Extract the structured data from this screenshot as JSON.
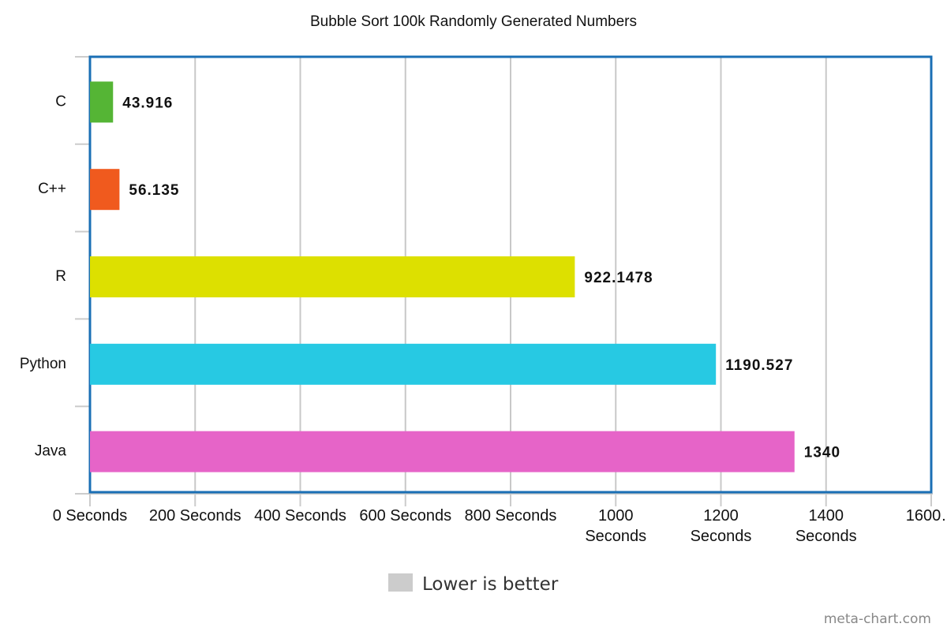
{
  "chart_data": {
    "type": "bar",
    "orientation": "horizontal",
    "title": "Bubble Sort 100k Randomly Generated Numbers",
    "categories": [
      "C",
      "C++",
      "R",
      "Python",
      "Java"
    ],
    "values": [
      43.916,
      56.135,
      922.1478,
      1190.527,
      1340
    ],
    "value_labels": [
      "43.916",
      "56.135",
      "922.1478",
      "1190.527",
      "1340"
    ],
    "colors": [
      "#55b535",
      "#f05a1e",
      "#dde000",
      "#27c9e3",
      "#e664c8"
    ],
    "xlim": [
      0,
      1600
    ],
    "xticks": [
      0,
      200,
      400,
      600,
      800,
      1000,
      1200,
      1400,
      1600
    ],
    "xtick_labels": [
      [
        "0 Seconds"
      ],
      [
        "200 Seconds"
      ],
      [
        "400 Seconds"
      ],
      [
        "600 Seconds"
      ],
      [
        "800 Seconds"
      ],
      [
        "1000",
        "Seconds"
      ],
      [
        "1200",
        "Seconds"
      ],
      [
        "1400",
        "Seconds"
      ],
      [
        "1600…"
      ]
    ],
    "grid": true,
    "legend": {
      "position": "bottom",
      "label": "Lower is better",
      "color": "#cccccc"
    },
    "frame_color": "#1a6fb5",
    "grid_color": "#c8c8c8"
  },
  "credit": "meta-chart.com"
}
